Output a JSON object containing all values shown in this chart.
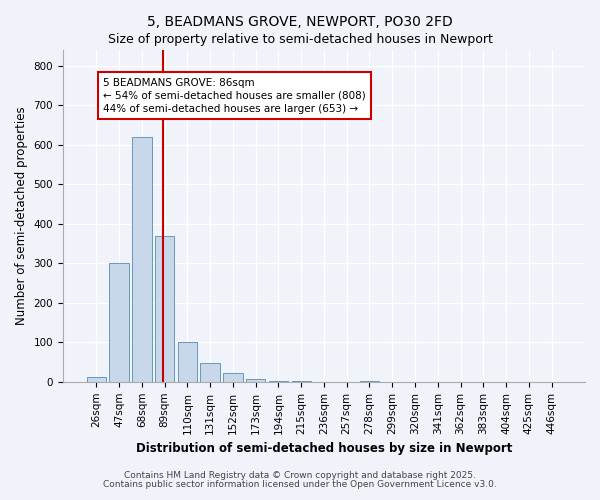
{
  "title": "5, BEADMANS GROVE, NEWPORT, PO30 2FD",
  "subtitle": "Size of property relative to semi-detached houses in Newport",
  "xlabel": "Distribution of semi-detached houses by size in Newport",
  "ylabel": "Number of semi-detached properties",
  "categories": [
    "26sqm",
    "47sqm",
    "68sqm",
    "89sqm",
    "110sqm",
    "131sqm",
    "152sqm",
    "173sqm",
    "194sqm",
    "215sqm",
    "236sqm",
    "257sqm",
    "278sqm",
    "299sqm",
    "320sqm",
    "341sqm",
    "362sqm",
    "383sqm",
    "404sqm",
    "425sqm",
    "446sqm"
  ],
  "values": [
    12,
    302,
    620,
    370,
    100,
    47,
    22,
    8,
    3,
    1,
    0,
    0,
    2,
    0,
    0,
    0,
    0,
    0,
    0,
    0,
    0
  ],
  "bar_color": "#c8d8ea",
  "bar_edge_color": "#6699bb",
  "vline_x_index": 3,
  "vline_color": "#cc0000",
  "annotation_text": "5 BEADMANS GROVE: 86sqm\n← 54% of semi-detached houses are smaller (808)\n44% of semi-detached houses are larger (653) →",
  "annotation_box_facecolor": "#ffffff",
  "annotation_box_edgecolor": "#cc0000",
  "ylim": [
    0,
    840
  ],
  "yticks": [
    0,
    100,
    200,
    300,
    400,
    500,
    600,
    700,
    800
  ],
  "bg_color": "#f0f4fa",
  "footer_line1": "Contains HM Land Registry data © Crown copyright and database right 2025.",
  "footer_line2": "Contains public sector information licensed under the Open Government Licence v3.0.",
  "title_fontsize": 10,
  "subtitle_fontsize": 9,
  "axis_label_fontsize": 8.5,
  "tick_fontsize": 7.5,
  "annotation_fontsize": 7.5,
  "footer_fontsize": 6.5
}
